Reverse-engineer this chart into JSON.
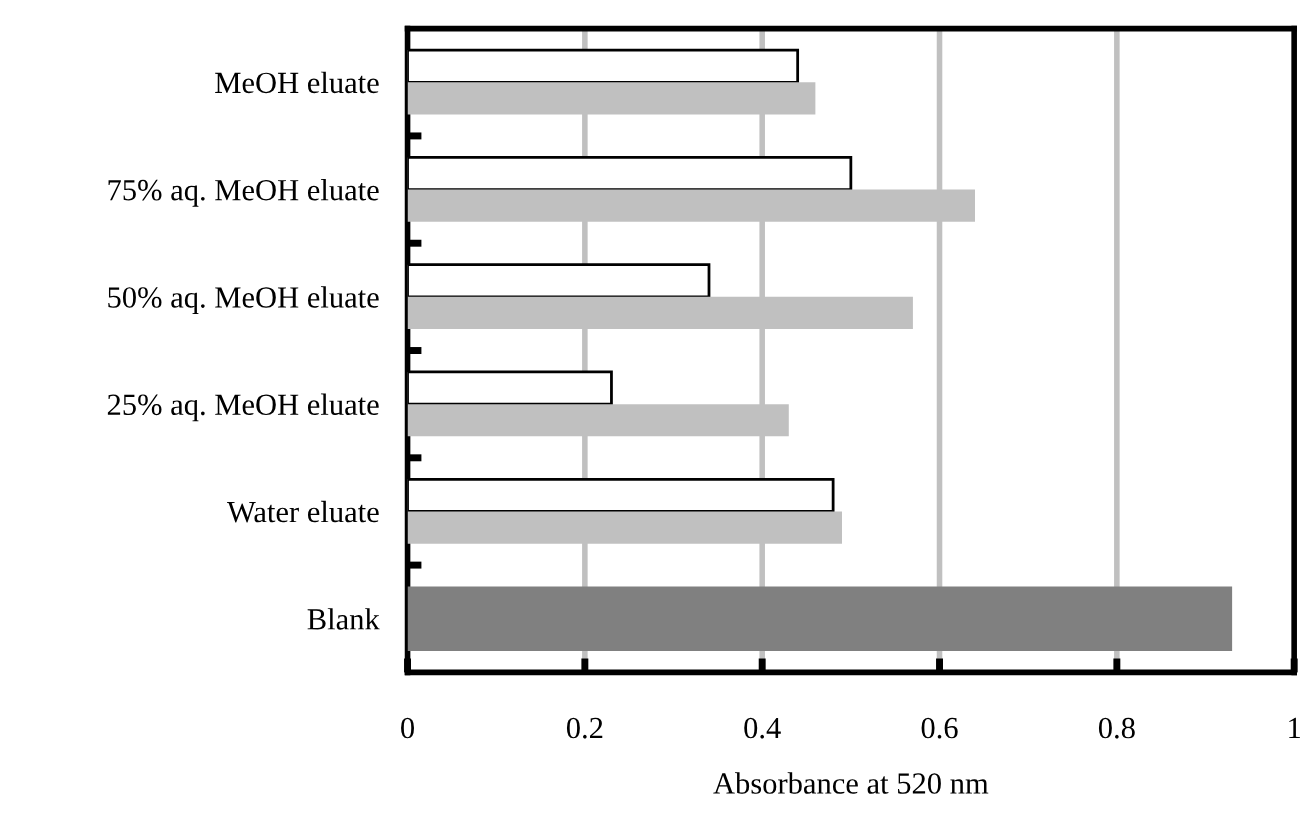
{
  "chart_data": {
    "type": "bar",
    "orientation": "horizontal",
    "xlabel": "Absorbance at 520 nm",
    "categories": [
      "MeOH eluate",
      "75% aq. MeOH eluate",
      "50% aq. MeOH eluate",
      "25% aq. MeOH eluate",
      "Water eluate",
      "Blank"
    ],
    "series": [
      {
        "color": "#ffffff",
        "values": [
          0.44,
          0.5,
          0.34,
          0.23,
          0.48,
          null
        ]
      },
      {
        "color": "#c0c0c0",
        "values": [
          0.46,
          0.64,
          0.57,
          0.43,
          0.49,
          null
        ]
      },
      {
        "color": "#808080",
        "values": [
          null,
          null,
          null,
          null,
          null,
          0.93
        ]
      }
    ],
    "xlim": [
      0,
      1
    ],
    "xticks": [
      0,
      {
        "value": 0.2,
        "label": "0.2"
      },
      {
        "value": 0.4,
        "label": "0.4"
      },
      {
        "value": 0.6,
        "label": "0.6"
      },
      {
        "value": 0.8,
        "label": "0.8"
      },
      1
    ],
    "grid": "x",
    "legend": false
  }
}
